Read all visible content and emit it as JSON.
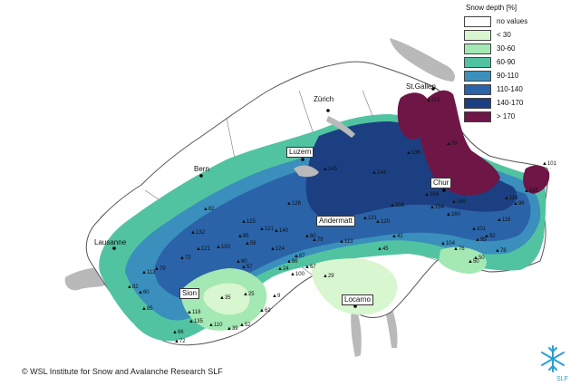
{
  "legend": {
    "title": "Snow depth [%]",
    "items": [
      {
        "label": "no values",
        "color": "#ffffff"
      },
      {
        "label": "< 30",
        "color": "#d8f6cf"
      },
      {
        "label": "30-60",
        "color": "#a4e8b4"
      },
      {
        "label": "60-90",
        "color": "#52c3a0"
      },
      {
        "label": "90-110",
        "color": "#3a8fbd"
      },
      {
        "label": "110-140",
        "color": "#2a63a8"
      },
      {
        "label": "140-170",
        "color": "#1c3f82"
      },
      {
        "label": "> 170",
        "color": "#6e1646"
      }
    ]
  },
  "cities": {
    "st_gallen": "St.Gallen",
    "zurich": "Zürich",
    "luzern": "Luzern",
    "bern": "Bern",
    "chur": "Chur",
    "andermatt": "Andermatt",
    "lausanne": "Lausanne",
    "sion": "Sion",
    "locarno": "Locarno"
  },
  "station_values": [
    "79",
    "101",
    "115",
    "165",
    "126",
    "121",
    "145",
    "144",
    "136",
    "184",
    "154",
    "145",
    "131",
    "120",
    "108",
    "160",
    "116",
    "96",
    "82",
    "125",
    "85",
    "56",
    "140",
    "116",
    "101",
    "60",
    "79",
    "124",
    "113",
    "45",
    "42",
    "104",
    "76",
    "95",
    "92",
    "150",
    "121",
    "132",
    "72",
    "79",
    "87",
    "86",
    "67",
    "112",
    "24",
    "100",
    "80",
    "57",
    "35",
    "25",
    "9",
    "62",
    "52",
    "39",
    "82",
    "60",
    "85",
    "118",
    "135",
    "110",
    "66",
    "72",
    "29",
    "50",
    "78",
    "50"
  ],
  "copyright": "© WSL Institute for Snow and Avalanche Research SLF",
  "logo_text": "SLF"
}
